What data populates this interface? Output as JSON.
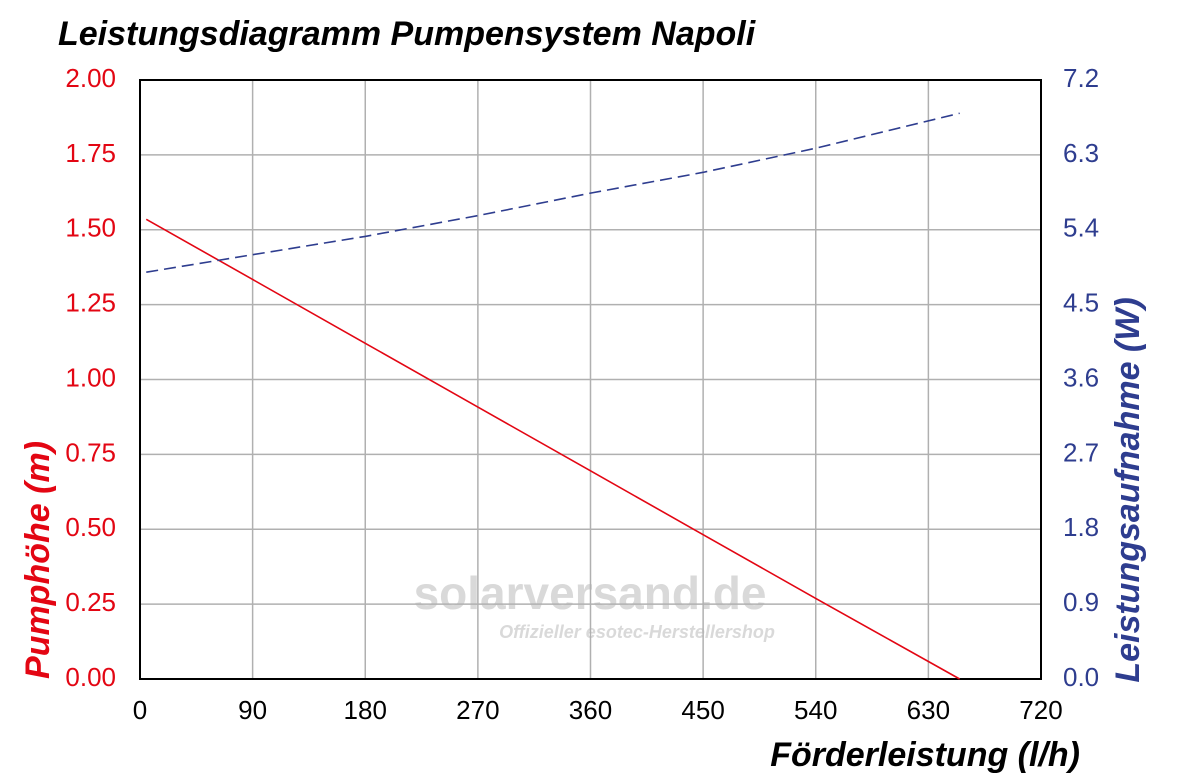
{
  "chart_data": {
    "type": "line",
    "title": "Leistungsdiagramm Pumpensystem Napoli",
    "xlabel": "Förderleistung (l/h)",
    "ylabel": "Pumphöhe (m)",
    "y2label": "Leistungsaufnahme (W)",
    "watermark": "solarversand.de",
    "watermark_subtitle": "Offizieller esotec-Herstellershop",
    "x": [
      5,
      90,
      180,
      270,
      360,
      450,
      540,
      655
    ],
    "series": [
      {
        "name": "Pumphöhe",
        "color": "#e30613",
        "linestyle": "solid",
        "values": [
          1.535,
          1.334,
          1.121,
          0.908,
          0.695,
          0.482,
          0.269,
          0
        ]
      },
      {
        "name": "Leistungsaufnahme",
        "color": "#2e3d8f",
        "linestyle": "dashed",
        "axis": "y2",
        "values": [
          4.89,
          5.1,
          5.32,
          5.57,
          5.84,
          6.09,
          6.38,
          6.8
        ]
      }
    ],
    "xlim": [
      0,
      720
    ],
    "xticks": [
      0,
      90,
      180,
      270,
      360,
      450,
      540,
      630,
      720
    ],
    "ylim": [
      0,
      2
    ],
    "yticks": [
      {
        "value": 0,
        "label": "0.00"
      },
      0.25,
      {
        "value": 0.5,
        "label": "0.50"
      },
      0.75,
      {
        "value": 1,
        "label": "1.00"
      },
      1.25,
      {
        "value": 1.5,
        "label": "1.50"
      },
      1.75,
      {
        "value": 2,
        "label": "2.00"
      }
    ],
    "y2lim": [
      0,
      7.2
    ],
    "y2ticks": [
      {
        "value": 0,
        "label": "0.0"
      },
      0.9,
      1.8,
      2.7,
      3.6,
      4.5,
      5.4,
      6.3,
      7.2
    ],
    "ycolor": "#e30613",
    "y2color": "#2e3d8f",
    "grid": true
  }
}
